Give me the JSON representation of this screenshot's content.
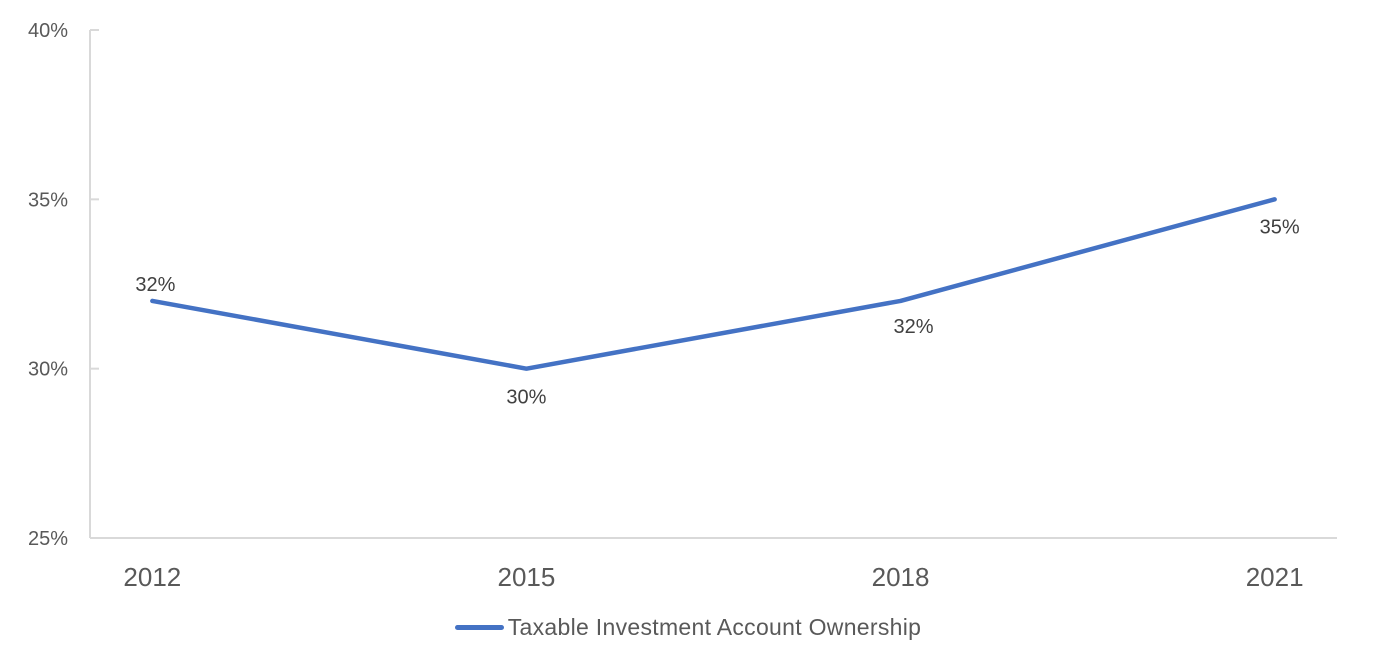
{
  "chart_data": {
    "type": "line",
    "title": "",
    "categories": [
      "2012",
      "2015",
      "2018",
      "2021"
    ],
    "series": [
      {
        "name": "Taxable Investment Account Ownership",
        "values": [
          32,
          30,
          32,
          35
        ],
        "data_labels": [
          "32%",
          "30%",
          "32%",
          "35%"
        ]
      }
    ],
    "xlabel": "",
    "ylabel": "",
    "ylim": [
      25,
      40
    ],
    "y_ticks": [
      {
        "value": 25,
        "label": "25%"
      },
      {
        "value": 30,
        "label": "30%"
      },
      {
        "value": 35,
        "label": "35%"
      },
      {
        "value": 40,
        "label": "40%"
      }
    ],
    "grid": false,
    "legend_position": "bottom",
    "colors": {
      "line": "#4472C4",
      "axis": "#D9D9D9",
      "axis_label": "#595959",
      "data_label": "#404040",
      "legend_text": "#595959"
    }
  },
  "legend": {
    "label": "Taxable Investment Account Ownership"
  }
}
